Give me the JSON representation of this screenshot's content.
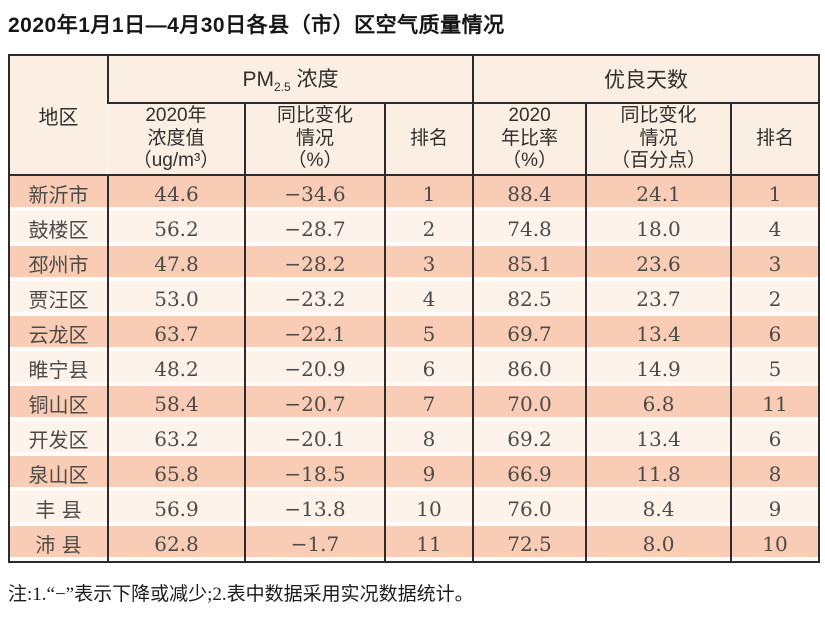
{
  "title": "2020年1月1日—4月30日各县（市）区空气质量情况",
  "footnote": "注:1.“−”表示下降或减少;2.表中数据采用实况数据统计。",
  "colors": {
    "row_odd": "#f8ccb5",
    "row_even": "#fdf3ea",
    "header_bg": "#fbefe3",
    "border": "#2c2c2c",
    "gap": "#fffdfb",
    "text": "#4e4a47"
  },
  "chart_data": {
    "type": "table",
    "title": "2020年1月1日—4月30日各县（市）区空气质量情况",
    "corner_header": "地区",
    "column_groups": [
      {
        "label": "PM2.5浓度",
        "prefix": "PM",
        "sub": "2.5",
        "suffix": " 浓度",
        "span": 3
      },
      {
        "label": "优良天数",
        "span": 3
      }
    ],
    "subheaders": [
      "2020年\n浓度值\n（ug/m³）",
      "同比变化\n情况\n（%）",
      "排名",
      "2020\n年比率\n（%）",
      "同比变化\n情况\n（百分点）",
      "排名"
    ],
    "columns": [
      "地区",
      "PM2.5浓度 2020年浓度值（ug/m³）",
      "PM2.5浓度 同比变化情况（%）",
      "PM2.5浓度 排名",
      "优良天数 2020年比率（%）",
      "优良天数 同比变化情况（百分点）",
      "优良天数 排名"
    ],
    "rows": [
      [
        "新沂市",
        "44.6",
        "−34.6",
        "1",
        "88.4",
        "24.1",
        "1"
      ],
      [
        "鼓楼区",
        "56.2",
        "−28.7",
        "2",
        "74.8",
        "18.0",
        "4"
      ],
      [
        "邳州市",
        "47.8",
        "−28.2",
        "3",
        "85.1",
        "23.6",
        "3"
      ],
      [
        "贾汪区",
        "53.0",
        "−23.2",
        "4",
        "82.5",
        "23.7",
        "2"
      ],
      [
        "云龙区",
        "63.7",
        "−22.1",
        "5",
        "69.7",
        "13.4",
        "6"
      ],
      [
        "睢宁县",
        "48.2",
        "−20.9",
        "6",
        "86.0",
        "14.9",
        "5"
      ],
      [
        "铜山区",
        "58.4",
        "−20.7",
        "7",
        "70.0",
        "6.8",
        "11"
      ],
      [
        "开发区",
        "63.2",
        "−20.1",
        "8",
        "69.2",
        "13.4",
        "6"
      ],
      [
        "泉山区",
        "65.8",
        "−18.5",
        "9",
        "66.9",
        "11.8",
        "8"
      ],
      [
        "丰 县",
        "56.9",
        "−13.8",
        "10",
        "76.0",
        "8.4",
        "9"
      ],
      [
        "沛 县",
        "62.8",
        "−1.7",
        "11",
        "72.5",
        "8.0",
        "10"
      ]
    ]
  }
}
